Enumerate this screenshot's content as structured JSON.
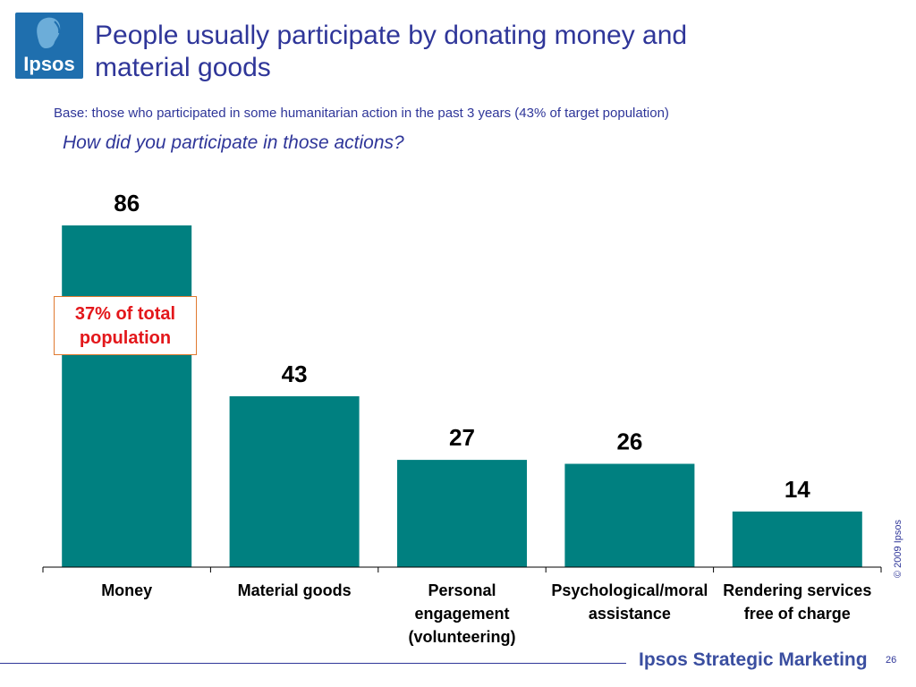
{
  "header": {
    "logo_text": "Ipsos",
    "title_line1": "People usually participate by donating money and",
    "title_line2": "material goods",
    "base_note": "Base: those who participated in some  humanitarian action in the past 3 years (43% of target population)",
    "question": "How did you participate in those actions?"
  },
  "callout": {
    "line1": "37% of total",
    "line2": "population"
  },
  "chart_data": {
    "type": "bar",
    "categories": [
      [
        "Money"
      ],
      [
        "Material goods"
      ],
      [
        "Personal",
        "engagement",
        "(volunteering)"
      ],
      [
        "Psychological/moral",
        "assistance"
      ],
      [
        "Rendering services",
        "free of charge"
      ]
    ],
    "values": [
      86,
      43,
      27,
      26,
      14
    ],
    "data_labels": [
      "86",
      "43",
      "27",
      "26",
      "14"
    ],
    "ylim": [
      0,
      86
    ],
    "bar_color": "#008080",
    "grid": false,
    "legend": "none"
  },
  "footer": {
    "copyright": "© 2009 Ipsos",
    "brand": "Ipsos Strategic Marketing",
    "page_number": "26"
  },
  "colors": {
    "title": "#2f3699",
    "callout_text": "#e3171b",
    "callout_border": "#e07a30",
    "logo_bg": "#1f6fae"
  }
}
